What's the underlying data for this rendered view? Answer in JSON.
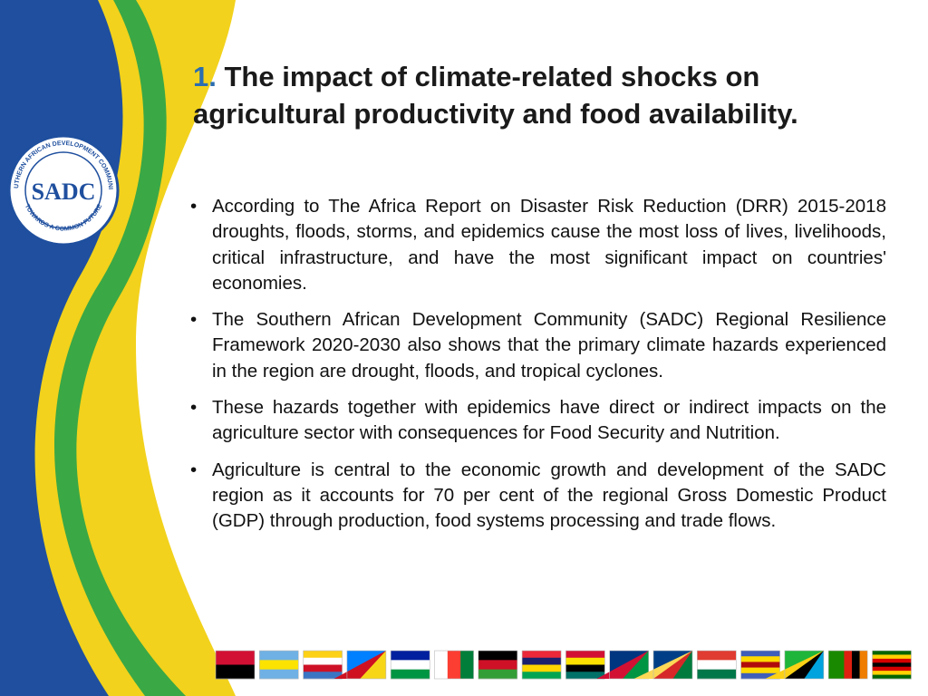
{
  "logo": {
    "acronym": "SADC",
    "ring_top": "SOUTHERN AFRICAN DEVELOPMENT COMMUNITY",
    "ring_bottom": "TOWARDS A COMMON FUTURE"
  },
  "header": {
    "number": "1.",
    "title": "The impact of climate-related shocks on agricultural productivity and food availability."
  },
  "bullets": [
    "According to The Africa Report on Disaster Risk Reduction (DRR) 2015-2018 droughts, floods, storms, and epidemics cause the most loss of lives, livelihoods, critical infrastructure, and have the most significant impact on countries' economies.",
    "The Southern African Development Community (SADC) Regional Resilience Framework 2020-2030 also shows that the primary climate hazards experienced in the region are drought, floods, and tropical cyclones.",
    "These hazards together with epidemics have direct or indirect impacts on the agriculture sector with consequences for Food Security and Nutrition.",
    "Agriculture is central to the economic growth and development of the SADC region as it accounts for 70 per cent of the regional Gross Domestic Product (GDP) through production, food systems processing and trade flows."
  ]
}
